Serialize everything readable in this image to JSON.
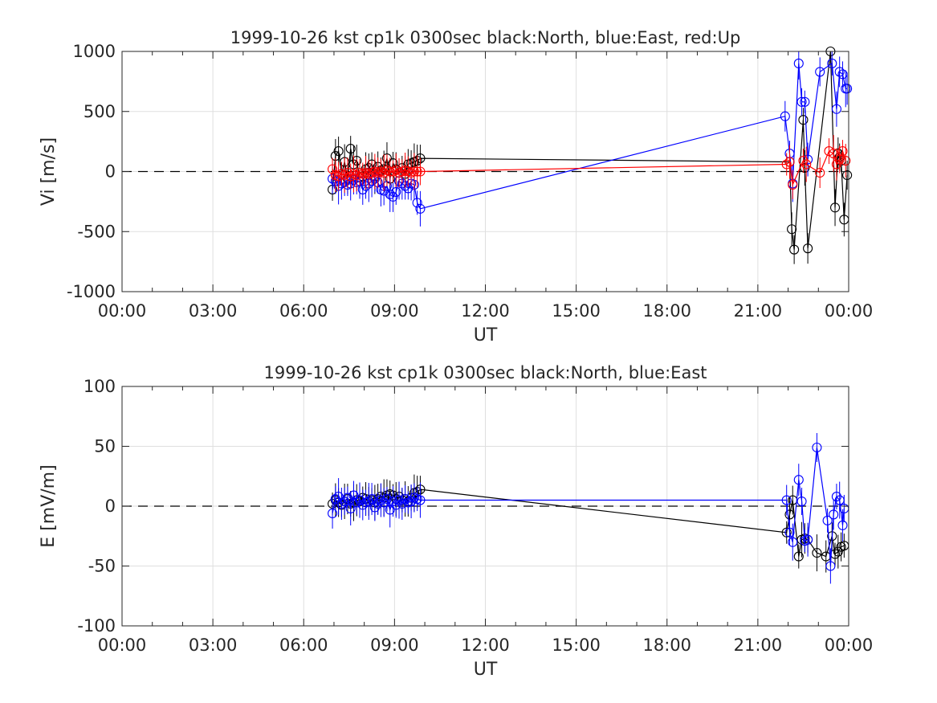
{
  "chart_data": [
    {
      "type": "line",
      "title": "1999-10-26 kst cp1k 0300sec black:North, blue:East, red:Up",
      "xlabel": "UT",
      "ylabel": "Vi [m/s]",
      "xlim": [
        0,
        24
      ],
      "ylim": [
        -1000,
        1000
      ],
      "xtick_labels": [
        "00:00",
        "03:00",
        "06:00",
        "09:00",
        "12:00",
        "15:00",
        "18:00",
        "21:00",
        "00:00"
      ],
      "ytick_labels": [
        "-1000",
        "-500",
        "0",
        "500",
        "1000"
      ],
      "grid": true,
      "series": [
        {
          "color": "#000000",
          "x": [
            6.95,
            7.05,
            7.15,
            7.25,
            7.35,
            7.45,
            7.55,
            7.65,
            7.75,
            7.85,
            7.95,
            8.05,
            8.15,
            8.25,
            8.35,
            8.45,
            8.55,
            8.65,
            8.75,
            8.85,
            8.95,
            9.05,
            9.15,
            9.25,
            9.35,
            9.45,
            9.55,
            9.65,
            9.75,
            9.85,
            22.05,
            22.12,
            22.2,
            22.5,
            22.55,
            22.65,
            23.4,
            23.55,
            23.65,
            23.7,
            23.75,
            23.85,
            23.95
          ],
          "y": [
            -150,
            130,
            170,
            -20,
            80,
            -60,
            190,
            60,
            90,
            -50,
            -40,
            20,
            30,
            60,
            -40,
            40,
            10,
            20,
            110,
            -60,
            70,
            20,
            -10,
            30,
            -20,
            60,
            70,
            80,
            90,
            110,
            80,
            -480,
            -650,
            430,
            30,
            -640,
            1000,
            -300,
            150,
            120,
            90,
            -400,
            -30
          ]
        },
        {
          "color": "#0000ff",
          "x": [
            6.95,
            7.05,
            7.15,
            7.25,
            7.35,
            7.45,
            7.55,
            7.65,
            7.75,
            7.85,
            7.95,
            8.05,
            8.15,
            8.25,
            8.35,
            8.45,
            8.55,
            8.65,
            8.75,
            8.85,
            8.95,
            9.05,
            9.15,
            9.25,
            9.35,
            9.45,
            9.55,
            9.65,
            9.75,
            9.85,
            21.9,
            22.05,
            22.15,
            22.35,
            22.45,
            22.55,
            22.65,
            23.05,
            23.45,
            23.6,
            23.7,
            23.8,
            23.9,
            23.95
          ],
          "y": [
            -60,
            -80,
            -120,
            -100,
            -90,
            -110,
            -100,
            -70,
            -90,
            -80,
            -150,
            -120,
            -100,
            -80,
            -60,
            -90,
            -150,
            -160,
            -120,
            -190,
            -210,
            -170,
            -80,
            -100,
            -120,
            -140,
            -100,
            -110,
            -260,
            -310,
            460,
            150,
            -100,
            900,
            580,
            580,
            100,
            830,
            900,
            520,
            830,
            810,
            690,
            690
          ]
        },
        {
          "color": "#ff0000",
          "x": [
            6.95,
            7.05,
            7.15,
            7.25,
            7.35,
            7.45,
            7.55,
            7.65,
            7.75,
            7.85,
            7.95,
            8.05,
            8.15,
            8.25,
            8.35,
            8.45,
            8.55,
            8.65,
            8.75,
            8.85,
            8.95,
            9.05,
            9.15,
            9.25,
            9.35,
            9.45,
            9.55,
            9.65,
            9.75,
            9.85,
            21.95,
            22.05,
            22.15,
            22.5,
            22.6,
            23.05,
            23.35,
            23.5,
            23.6,
            23.7,
            23.8,
            23.9
          ],
          "y": [
            20,
            -30,
            -40,
            -20,
            -30,
            -10,
            -40,
            -20,
            -30,
            -10,
            -20,
            -10,
            -20,
            -10,
            0,
            -10,
            0,
            -10,
            10,
            0,
            0,
            10,
            -10,
            0,
            10,
            0,
            -10,
            0,
            0,
            0,
            60,
            80,
            -110,
            90,
            60,
            -10,
            170,
            150,
            60,
            100,
            170,
            90
          ]
        }
      ]
    },
    {
      "type": "line",
      "title": "1999-10-26 kst cp1k 0300sec black:North, blue:East",
      "xlabel": "UT",
      "ylabel": "E [mV/m]",
      "xlim": [
        0,
        24
      ],
      "ylim": [
        -100,
        100
      ],
      "xtick_labels": [
        "00:00",
        "03:00",
        "06:00",
        "09:00",
        "12:00",
        "15:00",
        "18:00",
        "21:00",
        "00:00"
      ],
      "ytick_labels": [
        "-100",
        "-50",
        "0",
        "50",
        "100"
      ],
      "grid": true,
      "series": [
        {
          "color": "#000000",
          "x": [
            6.95,
            7.05,
            7.15,
            7.25,
            7.35,
            7.45,
            7.55,
            7.65,
            7.75,
            7.85,
            7.95,
            8.05,
            8.15,
            8.25,
            8.35,
            8.45,
            8.55,
            8.65,
            8.75,
            8.85,
            8.95,
            9.05,
            9.15,
            9.25,
            9.35,
            9.45,
            9.55,
            9.65,
            9.75,
            9.85,
            21.95,
            22.05,
            22.15,
            22.35,
            22.45,
            22.55,
            22.65,
            22.95,
            23.25,
            23.45,
            23.55,
            23.65,
            23.75,
            23.85
          ],
          "y": [
            2,
            5,
            3,
            1,
            4,
            6,
            2,
            3,
            5,
            4,
            7,
            6,
            4,
            5,
            3,
            6,
            8,
            7,
            9,
            10,
            9,
            6,
            8,
            5,
            6,
            4,
            7,
            11,
            12,
            14,
            -22,
            -7,
            5,
            -42,
            -28,
            -27,
            -28,
            -39,
            -42,
            -25,
            -40,
            -38,
            -34,
            -33
          ]
        },
        {
          "color": "#0000ff",
          "x": [
            6.95,
            7.05,
            7.15,
            7.25,
            7.35,
            7.45,
            7.55,
            7.65,
            7.75,
            7.85,
            7.95,
            8.05,
            8.15,
            8.25,
            8.35,
            8.45,
            8.55,
            8.65,
            8.75,
            8.85,
            8.95,
            9.05,
            9.15,
            9.25,
            9.35,
            9.45,
            9.55,
            9.65,
            9.75,
            9.85,
            21.95,
            22.05,
            22.15,
            22.35,
            22.45,
            22.55,
            22.65,
            22.95,
            23.3,
            23.4,
            23.5,
            23.6,
            23.7,
            23.8,
            23.85
          ],
          "y": [
            -6,
            6,
            8,
            2,
            4,
            7,
            -2,
            9,
            3,
            5,
            1,
            3,
            4,
            6,
            -1,
            2,
            5,
            3,
            6,
            -3,
            4,
            1,
            5,
            2,
            6,
            3,
            4,
            7,
            6,
            5,
            5,
            -22,
            -30,
            22,
            4,
            -29,
            -28,
            49,
            -12,
            -50,
            -7,
            8,
            5,
            -16,
            -2
          ]
        }
      ]
    }
  ]
}
